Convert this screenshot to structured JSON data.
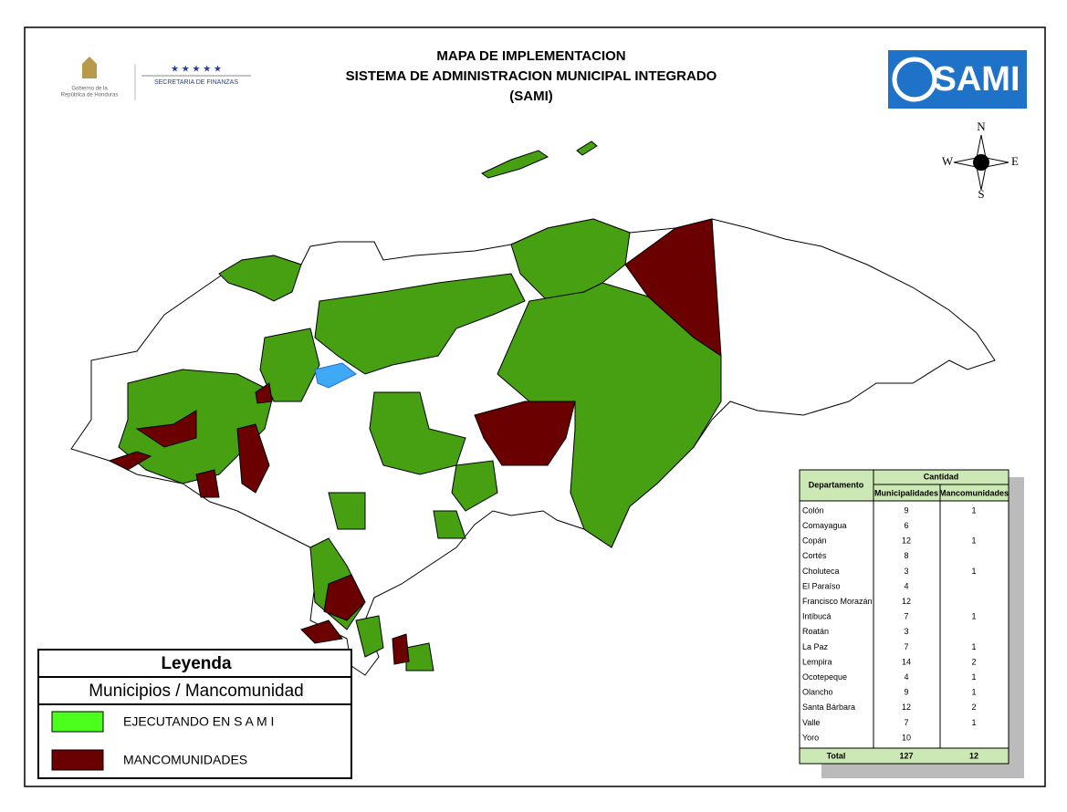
{
  "header": {
    "title_lines": [
      "MAPA DE IMPLEMENTACION",
      "SISTEMA DE ADMINISTRACION MUNICIPAL INTEGRADO",
      "(SAMI)"
    ],
    "government": [
      "Gobierno de la",
      "República de Honduras"
    ],
    "ministry": "SECRETARIA DE FINANZAS",
    "logo": "SAMI"
  },
  "compass": {
    "n": "N",
    "s": "S",
    "e": "E",
    "w": "W"
  },
  "legend": {
    "title": "Leyenda",
    "subtitle": "Municipios / Mancomunidad",
    "items": [
      {
        "label": "EJECUTANDO EN  S A M I",
        "color": "#4cff1c"
      },
      {
        "label": "MANCOMUNIDADES",
        "color": "#6b0000"
      }
    ]
  },
  "table": {
    "header": "Departamento",
    "group": "Cantidad",
    "columns": [
      "Municipalidades",
      "Mancomunidades"
    ],
    "rows": [
      {
        "name": "Colón",
        "municipalidades": 9,
        "mancomunidades": 1
      },
      {
        "name": "Comayagua",
        "municipalidades": 6
      },
      {
        "name": "Copán",
        "municipalidades": 12,
        "mancomunidades": 1
      },
      {
        "name": "Cortés",
        "municipalidades": 8
      },
      {
        "name": "Choluteca",
        "municipalidades": 3,
        "mancomunidades": 1
      },
      {
        "name": "El Paraíso",
        "municipalidades": 4
      },
      {
        "name": "Francisco Morazán",
        "municipalidades": 12
      },
      {
        "name": "Intibucá",
        "municipalidades": 7,
        "mancomunidades": 1
      },
      {
        "name": "Roatán",
        "municipalidades": 3
      },
      {
        "name": "La Paz",
        "municipalidades": 7,
        "mancomunidades": 1
      },
      {
        "name": "Lempira",
        "municipalidades": 14,
        "mancomunidades": 2
      },
      {
        "name": "Ocotepeque",
        "municipalidades": 4,
        "mancomunidades": 1
      },
      {
        "name": "Olancho",
        "municipalidades": 9,
        "mancomunidades": 1
      },
      {
        "name": "Santa Bárbara",
        "municipalidades": 12,
        "mancomunidades": 2
      },
      {
        "name": "Valle",
        "municipalidades": 7,
        "mancomunidades": 1
      },
      {
        "name": "Yoro",
        "municipalidades": 10
      }
    ],
    "total": {
      "name": "Total",
      "municipalidades": 127,
      "mancomunidades": 12
    }
  }
}
